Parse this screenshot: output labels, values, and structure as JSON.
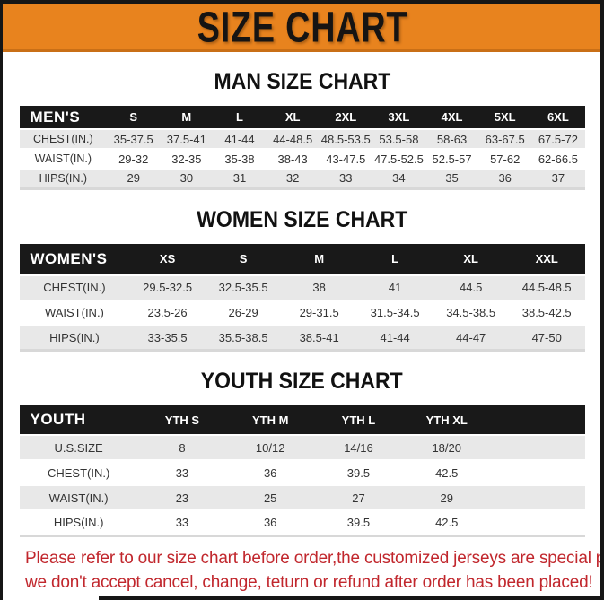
{
  "banner": {
    "title": "SIZE CHART",
    "bg_color": "#E8831E",
    "text_color": "#161413"
  },
  "colors": {
    "table_header_bg": "#191919",
    "stripe_gray": "#e8e8e8",
    "disclaimer_red": "#C1272D"
  },
  "sections": [
    {
      "heading": "MAN SIZE CHART",
      "table": {
        "header": [
          "MEN'S",
          "S",
          "M",
          "L",
          "XL",
          "2XL",
          "3XL",
          "4XL",
          "5XL",
          "6XL"
        ],
        "rows": [
          [
            "CHEST(IN.)",
            "35-37.5",
            "37.5-41",
            "41-44",
            "44-48.5",
            "48.5-53.5",
            "53.5-58",
            "58-63",
            "63-67.5",
            "67.5-72"
          ],
          [
            "WAIST(IN.)",
            "29-32",
            "32-35",
            "35-38",
            "38-43",
            "43-47.5",
            "47.5-52.5",
            "52.5-57",
            "57-62",
            "62-66.5"
          ],
          [
            "HIPS(IN.)",
            "29",
            "30",
            "31",
            "32",
            "33",
            "34",
            "35",
            "36",
            "37"
          ]
        ]
      }
    },
    {
      "heading": "WOMEN SIZE CHART",
      "table": {
        "header": [
          "WOMEN'S",
          "XS",
          "S",
          "M",
          "L",
          "XL",
          "XXL"
        ],
        "rows": [
          [
            "CHEST(IN.)",
            "29.5-32.5",
            "32.5-35.5",
            "38",
            "41",
            "44.5",
            "44.5-48.5"
          ],
          [
            "WAIST(IN.)",
            "23.5-26",
            "26-29",
            "29-31.5",
            "31.5-34.5",
            "34.5-38.5",
            "38.5-42.5"
          ],
          [
            "HIPS(IN.)",
            "33-35.5",
            "35.5-38.5",
            "38.5-41",
            "41-44",
            "44-47",
            "47-50"
          ]
        ]
      }
    },
    {
      "heading": "YOUTH SIZE CHART",
      "table": {
        "header": [
          "YOUTH",
          "YTH S",
          "YTH M",
          "YTH L",
          "YTH XL",
          ""
        ],
        "rows": [
          [
            "U.S.SIZE",
            "8",
            "10/12",
            "14/16",
            "18/20",
            ""
          ],
          [
            "CHEST(IN.)",
            "33",
            "36",
            "39.5",
            "42.5",
            ""
          ],
          [
            "WAIST(IN.)",
            "23",
            "25",
            "27",
            "29",
            ""
          ],
          [
            "HIPS(IN.)",
            "33",
            "36",
            "39.5",
            "42.5",
            ""
          ]
        ]
      }
    }
  ],
  "footer": {
    "line1": "Please refer to our size chart before order,the customized jerseys are special products,",
    "line2": "we don't accept cancel, change, teturn or refund after order has been placed!"
  }
}
